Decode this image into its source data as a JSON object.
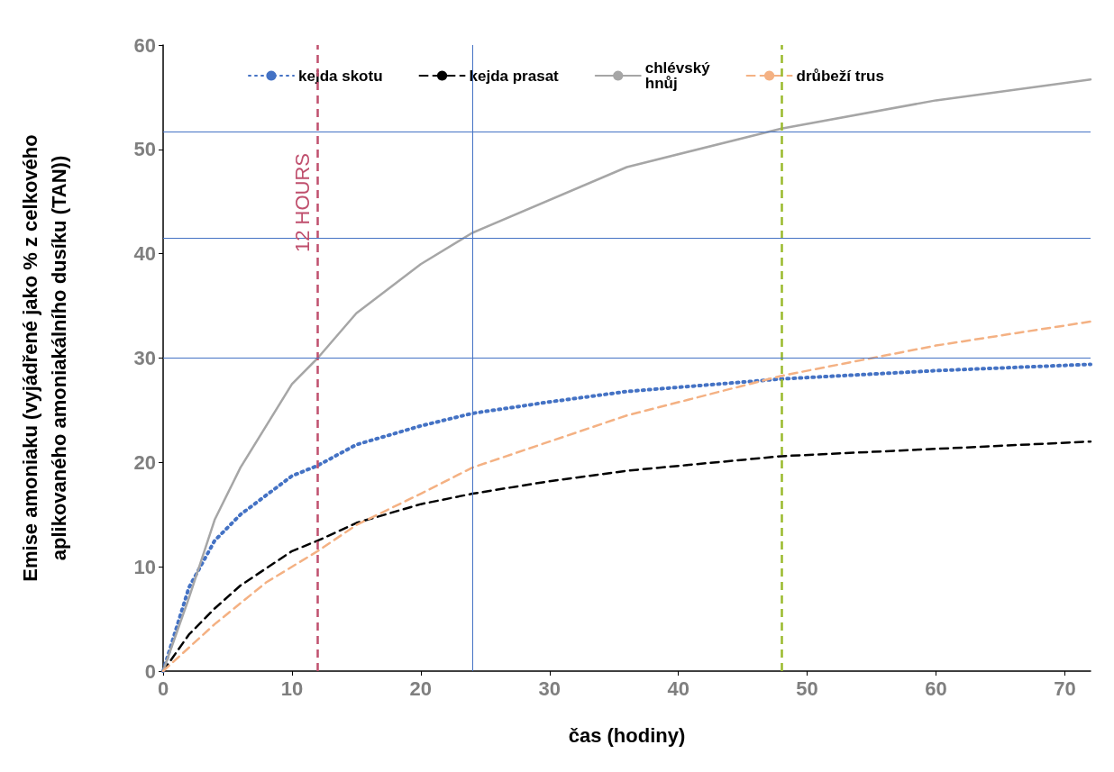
{
  "chart_data": {
    "type": "line",
    "xlabel": "čas (hodiny)",
    "ylabel": "Emise amoniaku (vyjádřené jako % z celkového\naplikovaného amoniakálního dusíku (TAN))",
    "xlim": [
      0,
      72
    ],
    "xticks": [
      0,
      10,
      20,
      30,
      40,
      50,
      60,
      70
    ],
    "ylim": [
      0,
      60
    ],
    "yticks": [
      0,
      10,
      20,
      30,
      40,
      50,
      60
    ],
    "grid": false,
    "legend": "top",
    "marker": "none",
    "series": [
      {
        "name": "kejda skotu",
        "color": "#4472c4",
        "line_style": "dotted",
        "x": [
          0,
          2,
          4,
          6,
          10,
          12,
          15,
          20,
          24,
          30,
          36,
          48,
          60,
          72
        ],
        "values": [
          0,
          8,
          12.5,
          15,
          18.7,
          19.7,
          21.7,
          23.5,
          24.7,
          25.8,
          26.8,
          28,
          28.8,
          29.4
        ]
      },
      {
        "name": "kejda prasat",
        "color": "#000000",
        "line_style": "dashed",
        "x": [
          0,
          2,
          4,
          6,
          10,
          12,
          15,
          20,
          24,
          30,
          36,
          48,
          60,
          72
        ],
        "values": [
          0,
          3.5,
          6,
          8.2,
          11.5,
          12.5,
          14.2,
          16,
          17,
          18.2,
          19.2,
          20.6,
          21.3,
          22
        ]
      },
      {
        "name": "chlévský\nhnůj",
        "color": "#a6a6a6",
        "line_style": "solid",
        "x": [
          0,
          2,
          4,
          6,
          10,
          12,
          15,
          20,
          24,
          36,
          48,
          60,
          72
        ],
        "values": [
          0,
          7,
          14.5,
          19.5,
          27.5,
          30,
          34.3,
          39,
          42,
          48.3,
          52,
          54.7,
          56.7
        ]
      },
      {
        "name": "drůbeží trus",
        "color": "#f4b183",
        "line_style": "dashed",
        "x": [
          0,
          4,
          8,
          12,
          15,
          20,
          24,
          30,
          36,
          48,
          60,
          72
        ],
        "values": [
          0,
          4.5,
          8.5,
          11.5,
          14,
          17,
          19.5,
          22,
          24.5,
          28.3,
          31.2,
          33.5
        ]
      }
    ],
    "ref_lines": [
      {
        "axis": "x",
        "value": 12,
        "label": "12 HOURS",
        "color": "#c0506e",
        "line_style": "dashed"
      },
      {
        "axis": "x",
        "value": 48,
        "label": null,
        "color": "#9aba2c",
        "line_style": "dashed"
      },
      {
        "axis": "x",
        "value": 24,
        "label": null,
        "color": "#4472c4",
        "line_style": "solid"
      },
      {
        "axis": "y",
        "value": 30,
        "label": null,
        "color": "#4472c4",
        "line_style": "solid"
      },
      {
        "axis": "y",
        "value": 41.5,
        "label": null,
        "color": "#4472c4",
        "line_style": "solid"
      },
      {
        "axis": "y",
        "value": 51.7,
        "label": null,
        "color": "#4472c4",
        "line_style": "solid"
      }
    ]
  }
}
